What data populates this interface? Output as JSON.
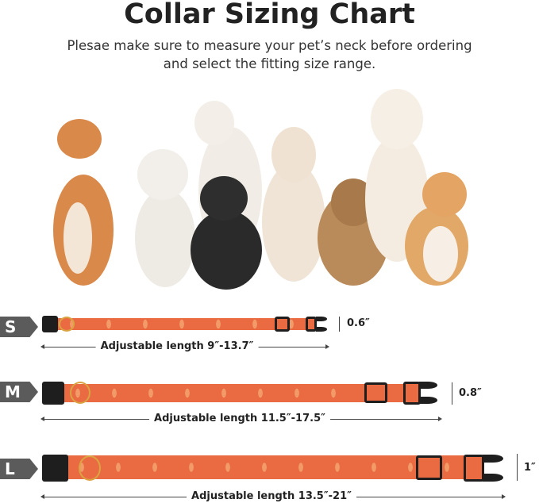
{
  "title": "Collar Sizing Chart",
  "subtitle": [
    "Plesae make sure to measure your pet’s neck before ordering",
    "and select the fitting size range."
  ],
  "collars": [
    {
      "size": "S",
      "width": "0.6″",
      "length": "Adjustable length 9″-13.7″"
    },
    {
      "size": "M",
      "width": "0.8″",
      "length": "Adjustable length 11.5″-17.5″"
    },
    {
      "size": "L",
      "width": "1″",
      "length": "Adjustable length 13.5″-21″"
    }
  ],
  "colors": {
    "strap": "#ea6b42",
    "badge": "#5b5b5b",
    "buckle": "#1e1e1e",
    "ring": "#d9a441"
  }
}
